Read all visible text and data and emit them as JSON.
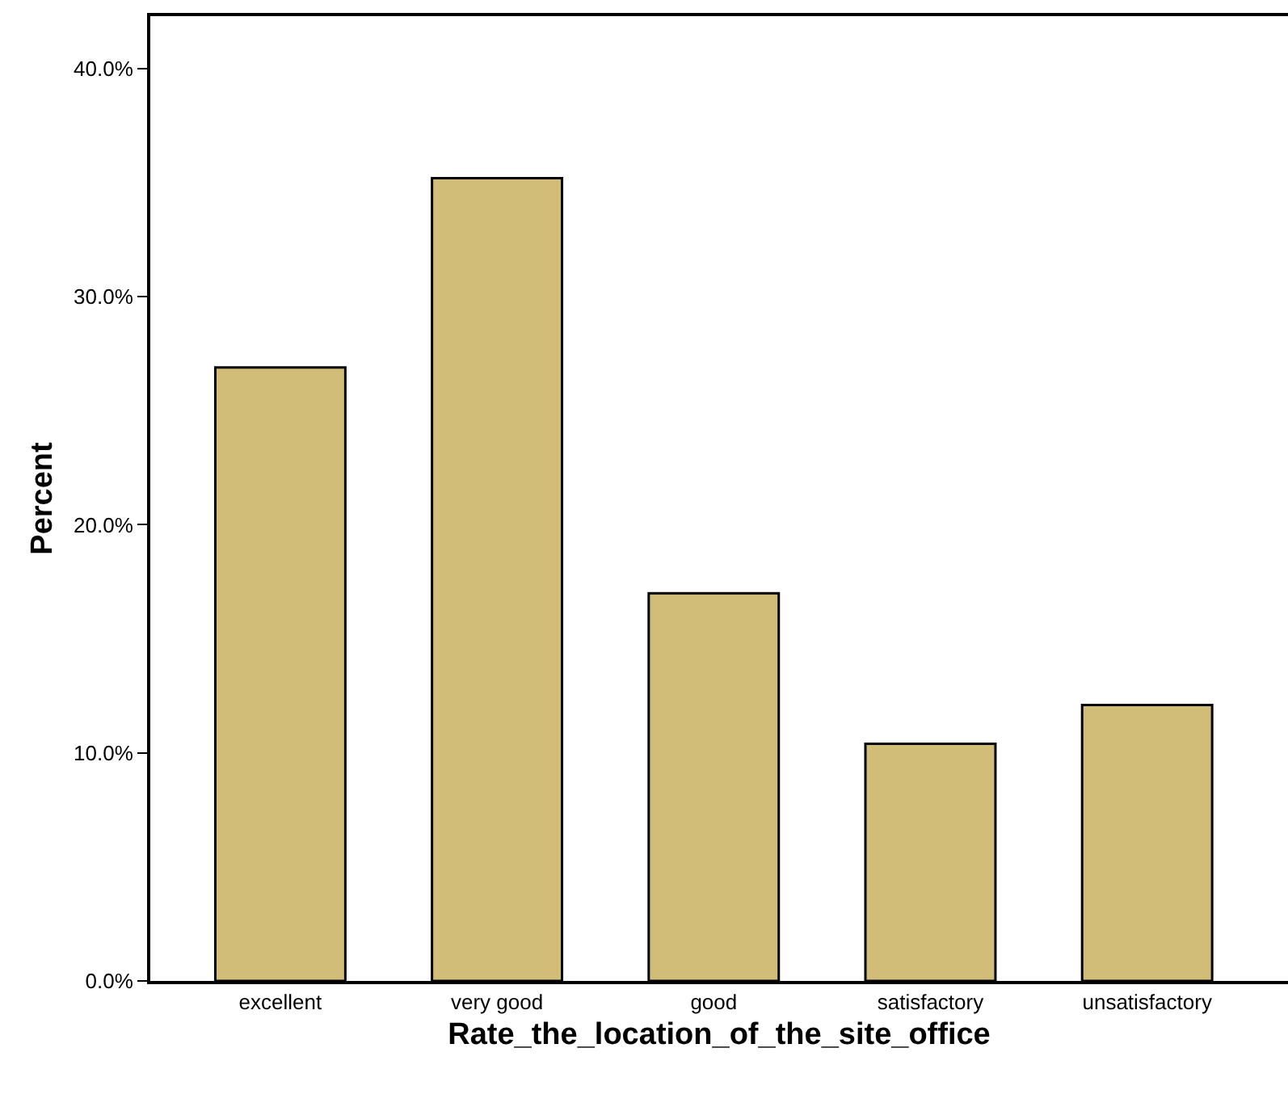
{
  "chart_data": {
    "type": "bar",
    "xlabel": "Rate_the_location_of_the_site_office",
    "ylabel": "Percent",
    "categories": [
      "excellent",
      "very good",
      "good",
      "satisfactory",
      "unsatisfactory"
    ],
    "values": [
      26.9,
      35.2,
      17.0,
      10.4,
      12.1
    ],
    "color": "#d2bd78",
    "ylim": [
      0,
      42.3
    ],
    "yticks": [
      {
        "value": 0,
        "label": "0.0%"
      },
      {
        "value": 10,
        "label": "10.0%"
      },
      {
        "value": 20,
        "label": "20.0%"
      },
      {
        "value": 30,
        "label": "30.0%"
      },
      {
        "value": 40,
        "label": "40.0%"
      }
    ],
    "grid": false
  }
}
